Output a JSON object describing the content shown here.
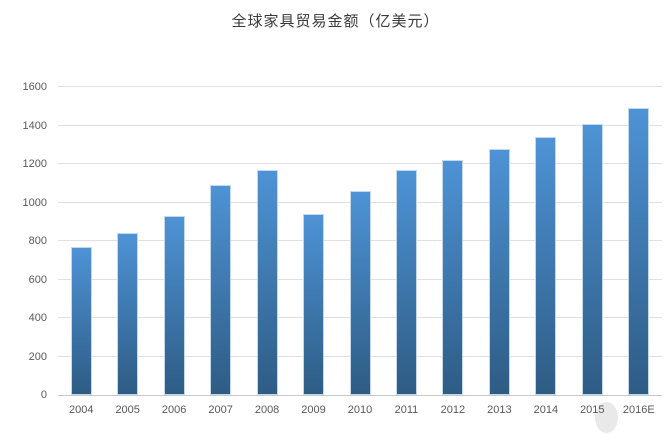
{
  "chart_data": {
    "type": "bar",
    "title": "全球家具贸易金额（亿美元）",
    "categories": [
      "2004",
      "2005",
      "2006",
      "2007",
      "2008",
      "2009",
      "2010",
      "2011",
      "2012",
      "2013",
      "2014",
      "2015",
      "2016E"
    ],
    "values": [
      770,
      840,
      930,
      1090,
      1170,
      940,
      1060,
      1170,
      1220,
      1280,
      1340,
      1410,
      1490
    ],
    "xlabel": "",
    "ylabel": "",
    "ylim": [
      0,
      1600
    ],
    "ytick_step": 200,
    "ytick_labels": [
      "0",
      "200",
      "400",
      "600",
      "800",
      "1000",
      "1200",
      "1400",
      "1600"
    ],
    "grid": true,
    "legend_position": "none",
    "data_labels": false,
    "colors": {
      "bar_gradient_top": "#4e93d6",
      "bar_gradient_bottom": "#2e5c84",
      "bar_border": "#c4d8ec",
      "gridline": "#e0e0e0",
      "axis_line": "#c8c8c8",
      "tick_label": "#595959",
      "title": "#3a3a3a",
      "background": "#ffffff",
      "watermark_ghost": "#e9e9e9"
    }
  }
}
